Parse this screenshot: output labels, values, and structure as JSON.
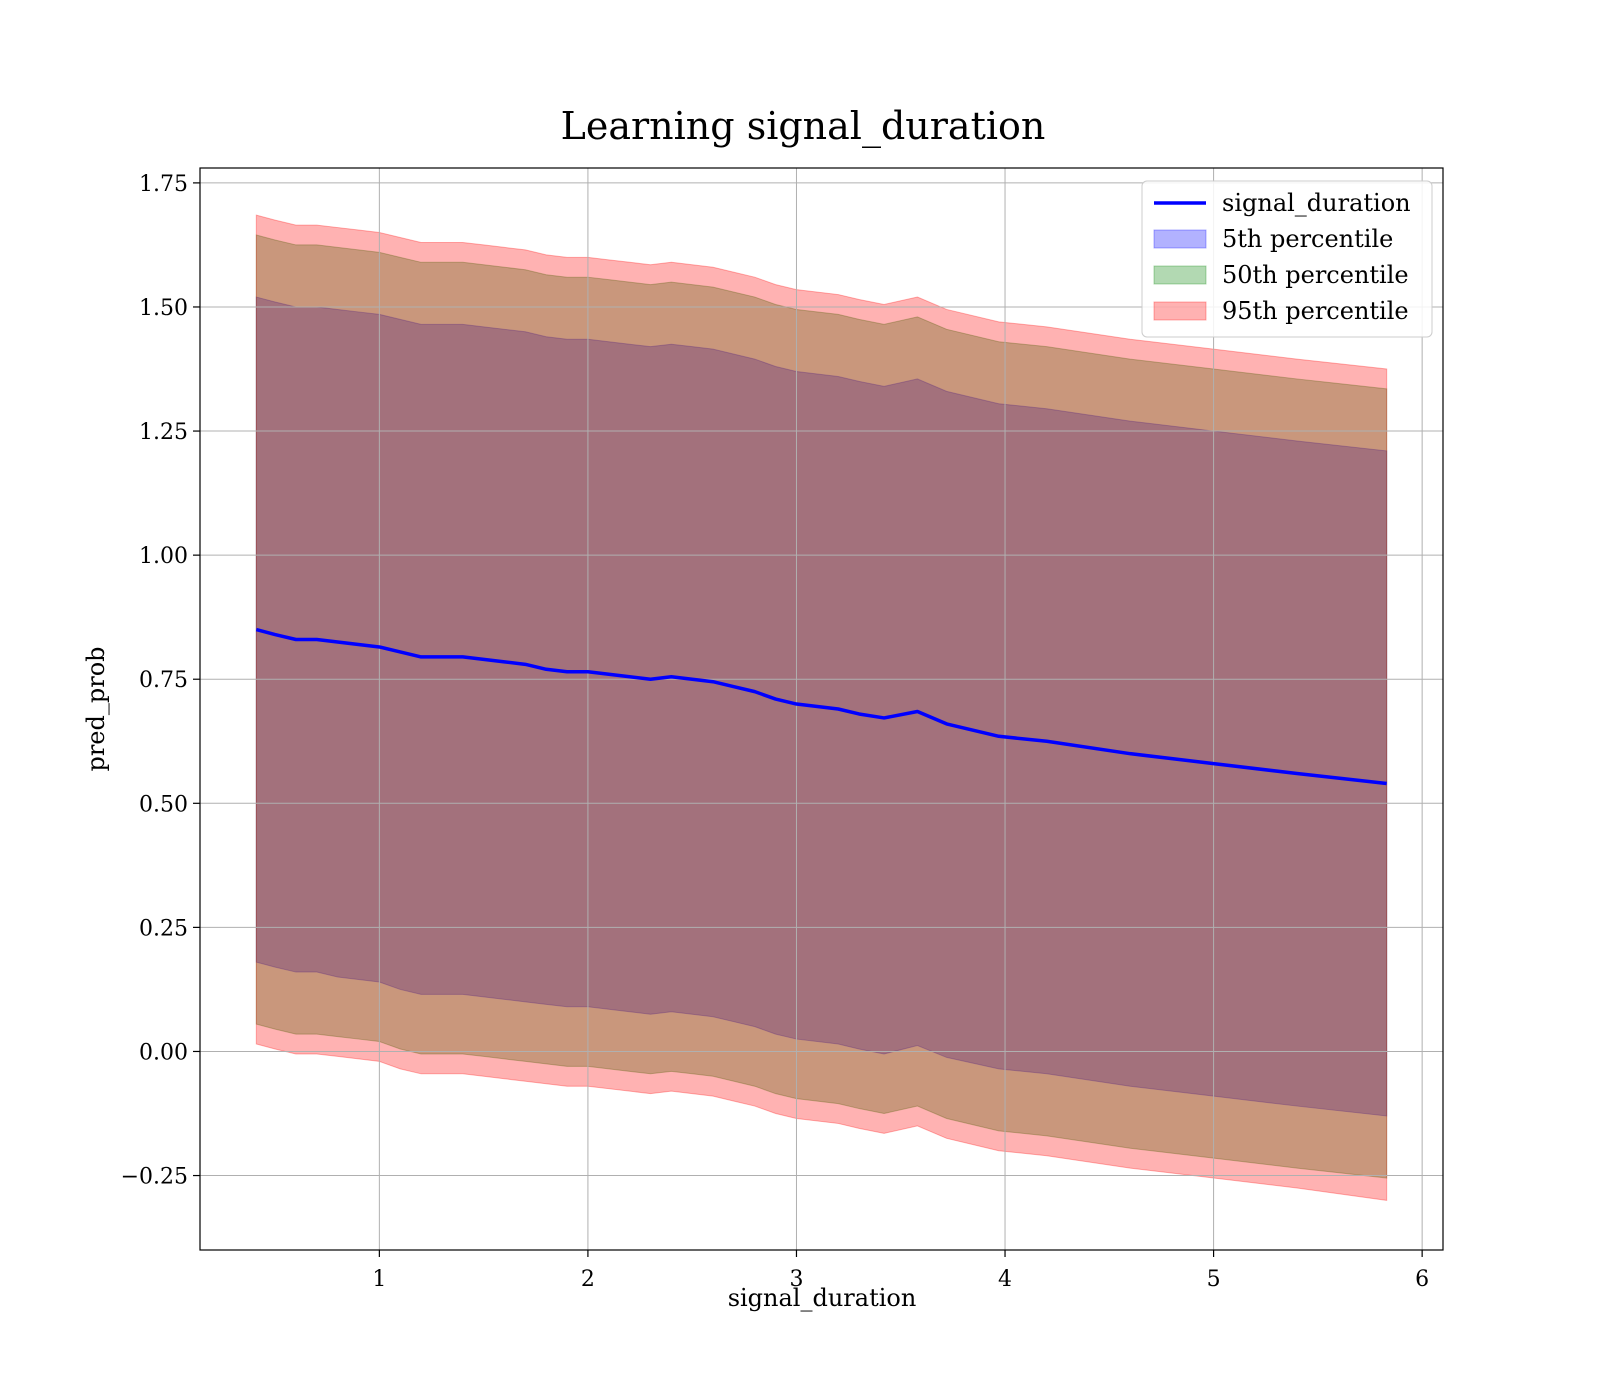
{
  "chart_data": {
    "type": "area",
    "title": "Learning signal_duration",
    "xlabel": "signal_duration",
    "ylabel": "pred_prob",
    "xlim": [
      0.14,
      6.1
    ],
    "ylim": [
      -0.4,
      1.78
    ],
    "xticks": [
      1,
      2,
      3,
      4,
      5,
      6
    ],
    "xtick_labels": [
      "1",
      "2",
      "3",
      "4",
      "5",
      "6"
    ],
    "yticks": [
      -0.25,
      0.0,
      0.25,
      0.5,
      0.75,
      1.0,
      1.25,
      1.5,
      1.75
    ],
    "ytick_labels": [
      "−0.25",
      "0.00",
      "0.25",
      "0.50",
      "0.75",
      "1.00",
      "1.25",
      "1.50",
      "1.75"
    ],
    "grid": true,
    "legend_position": "top-right",
    "x": [
      0.41,
      0.5,
      0.6,
      0.7,
      0.8,
      0.9,
      1.0,
      1.1,
      1.2,
      1.3,
      1.4,
      1.5,
      1.6,
      1.7,
      1.8,
      1.9,
      2.0,
      2.1,
      2.2,
      2.3,
      2.4,
      2.5,
      2.6,
      2.7,
      2.8,
      2.9,
      3.0,
      3.2,
      3.3,
      3.42,
      3.58,
      3.72,
      3.97,
      4.2,
      4.6,
      5.0,
      5.4,
      5.83
    ],
    "series": [
      {
        "name": "signal_duration",
        "kind": "line",
        "color": "#0000ff",
        "values": [
          0.85,
          0.84,
          0.83,
          0.83,
          0.825,
          0.82,
          0.815,
          0.805,
          0.795,
          0.795,
          0.795,
          0.79,
          0.785,
          0.78,
          0.77,
          0.765,
          0.765,
          0.76,
          0.755,
          0.75,
          0.755,
          0.75,
          0.745,
          0.735,
          0.725,
          0.71,
          0.7,
          0.69,
          0.68,
          0.672,
          0.685,
          0.66,
          0.635,
          0.625,
          0.6,
          0.58,
          0.56,
          0.54
        ]
      },
      {
        "name": "5th percentile",
        "kind": "band",
        "color": "#0000ff",
        "opacity": 0.3,
        "lower": [
          0.18,
          0.17,
          0.16,
          0.16,
          0.15,
          0.145,
          0.14,
          0.125,
          0.115,
          0.115,
          0.115,
          0.11,
          0.105,
          0.1,
          0.095,
          0.09,
          0.09,
          0.085,
          0.08,
          0.075,
          0.08,
          0.075,
          0.07,
          0.06,
          0.05,
          0.035,
          0.025,
          0.015,
          0.005,
          -0.005,
          0.012,
          -0.012,
          -0.035,
          -0.045,
          -0.07,
          -0.09,
          -0.11,
          -0.13
        ],
        "upper": [
          1.52,
          1.51,
          1.5,
          1.5,
          1.495,
          1.49,
          1.485,
          1.475,
          1.465,
          1.465,
          1.465,
          1.46,
          1.455,
          1.45,
          1.44,
          1.435,
          1.435,
          1.43,
          1.425,
          1.42,
          1.425,
          1.42,
          1.415,
          1.405,
          1.395,
          1.38,
          1.37,
          1.36,
          1.35,
          1.34,
          1.355,
          1.33,
          1.305,
          1.295,
          1.27,
          1.25,
          1.23,
          1.21
        ]
      },
      {
        "name": "50th percentile",
        "kind": "band",
        "color": "#008000",
        "opacity": 0.3,
        "lower": [
          0.055,
          0.045,
          0.035,
          0.035,
          0.03,
          0.025,
          0.02,
          0.005,
          -0.005,
          -0.005,
          -0.005,
          -0.01,
          -0.015,
          -0.02,
          -0.025,
          -0.03,
          -0.03,
          -0.035,
          -0.04,
          -0.045,
          -0.04,
          -0.045,
          -0.05,
          -0.06,
          -0.07,
          -0.085,
          -0.095,
          -0.105,
          -0.115,
          -0.125,
          -0.11,
          -0.135,
          -0.16,
          -0.17,
          -0.195,
          -0.215,
          -0.235,
          -0.255
        ],
        "upper": [
          1.645,
          1.635,
          1.625,
          1.625,
          1.62,
          1.615,
          1.61,
          1.6,
          1.59,
          1.59,
          1.59,
          1.585,
          1.58,
          1.575,
          1.565,
          1.56,
          1.56,
          1.555,
          1.55,
          1.545,
          1.55,
          1.545,
          1.54,
          1.53,
          1.52,
          1.505,
          1.495,
          1.485,
          1.475,
          1.465,
          1.48,
          1.455,
          1.43,
          1.42,
          1.395,
          1.375,
          1.355,
          1.335
        ]
      },
      {
        "name": "95th percentile",
        "kind": "band",
        "color": "#ff0000",
        "opacity": 0.3,
        "lower": [
          0.015,
          0.005,
          -0.005,
          -0.005,
          -0.01,
          -0.015,
          -0.02,
          -0.035,
          -0.045,
          -0.045,
          -0.045,
          -0.05,
          -0.055,
          -0.06,
          -0.065,
          -0.07,
          -0.07,
          -0.075,
          -0.08,
          -0.085,
          -0.08,
          -0.085,
          -0.09,
          -0.1,
          -0.11,
          -0.125,
          -0.135,
          -0.145,
          -0.155,
          -0.165,
          -0.15,
          -0.175,
          -0.2,
          -0.21,
          -0.235,
          -0.255,
          -0.275,
          -0.3
        ],
        "upper": [
          1.685,
          1.675,
          1.665,
          1.665,
          1.66,
          1.655,
          1.65,
          1.64,
          1.63,
          1.63,
          1.63,
          1.625,
          1.62,
          1.615,
          1.605,
          1.6,
          1.6,
          1.595,
          1.59,
          1.585,
          1.59,
          1.585,
          1.58,
          1.57,
          1.56,
          1.545,
          1.535,
          1.525,
          1.515,
          1.505,
          1.52,
          1.495,
          1.47,
          1.46,
          1.435,
          1.415,
          1.395,
          1.375
        ]
      }
    ]
  }
}
